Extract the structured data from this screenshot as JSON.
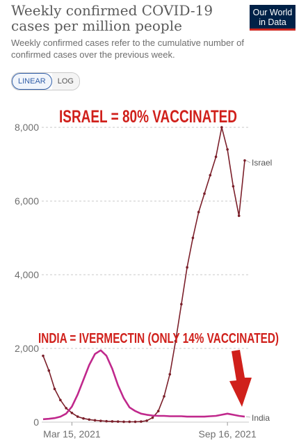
{
  "header": {
    "title": "Weekly confirmed COVID-19 cases per million people",
    "subtitle": "Weekly confirmed cases refer to the cumulative number of confirmed cases over the previous week.",
    "logo_line1": "Our World",
    "logo_line2": "in Data"
  },
  "controls": {
    "linear_label": "LINEAR",
    "log_label": "LOG",
    "selected": "LINEAR"
  },
  "colors": {
    "israel": "#7b1f2a",
    "india": "#c0288c",
    "annotation": "#d0201b",
    "grid": "#c9c9c9"
  },
  "chart_data": {
    "type": "line",
    "title": "Weekly confirmed COVID-19 cases per million people",
    "scale": "linear",
    "ylim": [
      0,
      8700
    ],
    "grid": "horizontal dashed",
    "y_ticks": [
      0,
      2000,
      4000,
      6000,
      8000
    ],
    "y_tick_labels": [
      "0",
      "2,000",
      "4,000",
      "6,000",
      "8,000"
    ],
    "x_tick_labels": [
      "Mar 15, 2021",
      "Sep 16, 2021"
    ],
    "x": [
      "2021-02-06",
      "2021-02-13",
      "2021-02-20",
      "2021-02-27",
      "2021-03-06",
      "2021-03-13",
      "2021-03-20",
      "2021-03-27",
      "2021-04-03",
      "2021-04-10",
      "2021-04-17",
      "2021-04-24",
      "2021-05-01",
      "2021-05-08",
      "2021-05-15",
      "2021-05-22",
      "2021-05-29",
      "2021-06-05",
      "2021-06-12",
      "2021-06-19",
      "2021-06-26",
      "2021-07-03",
      "2021-07-10",
      "2021-07-17",
      "2021-07-24",
      "2021-07-31",
      "2021-08-07",
      "2021-08-14",
      "2021-08-21",
      "2021-08-28",
      "2021-09-04",
      "2021-09-11",
      "2021-09-18",
      "2021-09-25",
      "2021-10-02",
      "2021-10-09"
    ],
    "series": [
      {
        "name": "Israel",
        "values": [
          1800,
          1400,
          900,
          600,
          380,
          250,
          150,
          100,
          70,
          50,
          35,
          25,
          20,
          15,
          10,
          10,
          10,
          15,
          40,
          120,
          300,
          700,
          1300,
          2200,
          3200,
          4200,
          5000,
          5700,
          6200,
          6700,
          7200,
          8000,
          7400,
          6400,
          5600,
          7100
        ]
      },
      {
        "name": "India",
        "values": [
          80,
          90,
          110,
          150,
          230,
          420,
          750,
          1150,
          1550,
          1850,
          1950,
          1800,
          1450,
          1000,
          650,
          400,
          300,
          230,
          200,
          180,
          170,
          170,
          160,
          160,
          160,
          150,
          150,
          150,
          150,
          160,
          170,
          200,
          230,
          200,
          170,
          150
        ]
      }
    ],
    "annotations": [
      "ISRAEL = 80% VACCINATED",
      "INDIA = IVERMECTIN (ONLY 14% VACCINATED)"
    ]
  }
}
